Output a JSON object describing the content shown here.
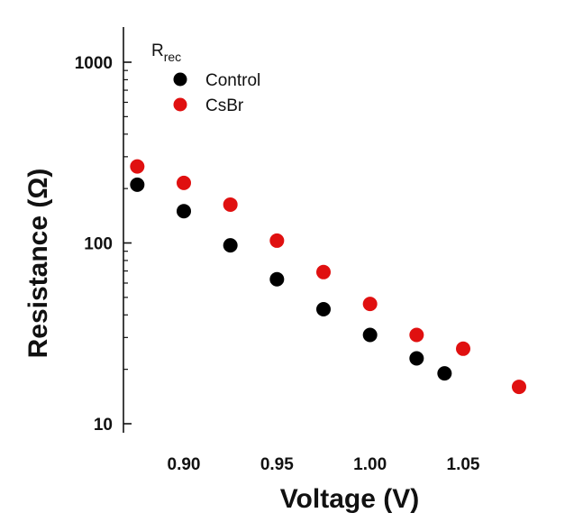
{
  "chart_data": {
    "type": "scatter",
    "title": "",
    "xlabel": "Voltage (V)",
    "ylabel": "Resistance (Ω)",
    "xlim": [
      0.875,
      1.085
    ],
    "ylim": [
      10,
      2000
    ],
    "yscale": "log",
    "grid": false,
    "xticks": [
      0.9,
      0.95,
      1.0,
      1.05
    ],
    "xtick_labels": [
      "0.90",
      "0.95",
      "1.00",
      "1.05"
    ],
    "yticks": [
      10,
      100,
      1000
    ],
    "ytick_labels": [
      "10",
      "100",
      "1000"
    ],
    "legend": {
      "position": "top-left",
      "title_main": "R",
      "title_sub": "rec"
    },
    "series": [
      {
        "name": "Control",
        "color": "#000000",
        "x": [
          0.875,
          0.9,
          0.925,
          0.95,
          0.975,
          1.0,
          1.025,
          1.04
        ],
        "y": [
          210,
          150,
          97,
          63,
          43,
          31,
          23,
          19
        ]
      },
      {
        "name": "CsBr",
        "color": "#e01010",
        "x": [
          0.875,
          0.9,
          0.925,
          0.95,
          0.975,
          1.0,
          1.025,
          1.05,
          1.08
        ],
        "y": [
          265,
          215,
          163,
          103,
          69,
          46,
          31,
          26,
          16
        ]
      }
    ]
  }
}
